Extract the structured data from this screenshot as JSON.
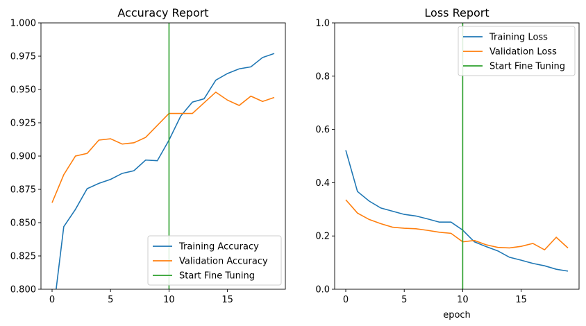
{
  "chart_data": [
    {
      "type": "line",
      "title": "Accuracy Report",
      "xlabel": "",
      "ylabel": "",
      "xlim": [
        -0.95,
        19.95
      ],
      "ylim": [
        0.8,
        1.0
      ],
      "xticks": [
        0,
        5,
        10,
        15
      ],
      "yticks": [
        0.8,
        0.825,
        0.85,
        0.875,
        0.9,
        0.925,
        0.95,
        0.975,
        1.0
      ],
      "ytick_labels": [
        "0.800",
        "0.825",
        "0.850",
        "0.875",
        "0.900",
        "0.925",
        "0.950",
        "0.975",
        "1.000"
      ],
      "grid": false,
      "legend_position": "lower-right",
      "x": [
        0,
        1,
        2,
        3,
        4,
        5,
        6,
        7,
        8,
        9,
        10,
        11,
        12,
        13,
        14,
        15,
        16,
        17,
        18,
        19
      ],
      "series": [
        {
          "name": "Training Accuracy",
          "color": "#1f77b4",
          "values": [
            0.775,
            0.847,
            0.86,
            0.8755,
            0.8795,
            0.8825,
            0.887,
            0.889,
            0.897,
            0.8965,
            0.912,
            0.93,
            0.9405,
            0.943,
            0.957,
            0.962,
            0.9655,
            0.967,
            0.974,
            0.977
          ]
        },
        {
          "name": "Validation Accuracy",
          "color": "#ff7f0e",
          "values": [
            0.865,
            0.886,
            0.9,
            0.902,
            0.912,
            0.913,
            0.909,
            0.91,
            0.914,
            0.923,
            0.932,
            0.932,
            0.932,
            0.94,
            0.948,
            0.942,
            0.938,
            0.945,
            0.941,
            0.944
          ]
        }
      ],
      "vline": {
        "name": "Start Fine Tuning",
        "x": 10,
        "color": "#2ca02c"
      }
    },
    {
      "type": "line",
      "title": "Loss Report",
      "xlabel": "epoch",
      "ylabel": "",
      "xlim": [
        -0.95,
        19.95
      ],
      "ylim": [
        0.0,
        1.0
      ],
      "xticks": [
        0,
        5,
        10,
        15
      ],
      "yticks": [
        0.0,
        0.2,
        0.4,
        0.6,
        0.8,
        1.0
      ],
      "ytick_labels": [
        "0.0",
        "0.2",
        "0.4",
        "0.6",
        "0.8",
        "1.0"
      ],
      "grid": false,
      "legend_position": "upper-right",
      "x": [
        0,
        1,
        2,
        3,
        4,
        5,
        6,
        7,
        8,
        9,
        10,
        11,
        12,
        13,
        14,
        15,
        16,
        17,
        18,
        19
      ],
      "series": [
        {
          "name": "Training Loss",
          "color": "#1f77b4",
          "values": [
            0.522,
            0.367,
            0.331,
            0.305,
            0.293,
            0.281,
            0.275,
            0.264,
            0.252,
            0.252,
            0.222,
            0.178,
            0.16,
            0.144,
            0.12,
            0.109,
            0.097,
            0.088,
            0.075,
            0.068
          ]
        },
        {
          "name": "Validation Loss",
          "color": "#ff7f0e",
          "values": [
            0.336,
            0.286,
            0.262,
            0.246,
            0.233,
            0.229,
            0.227,
            0.221,
            0.214,
            0.21,
            0.178,
            0.183,
            0.167,
            0.157,
            0.155,
            0.161,
            0.172,
            0.148,
            0.195,
            0.155
          ]
        }
      ],
      "vline": {
        "name": "Start Fine Tuning",
        "x": 10,
        "color": "#2ca02c"
      }
    }
  ]
}
